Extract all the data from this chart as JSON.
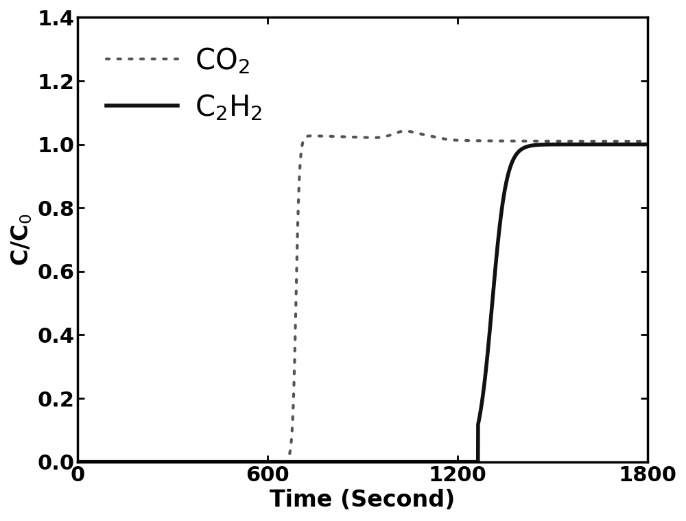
{
  "title": "",
  "xlabel": "Time (Second)",
  "ylabel": "C/C$_0$",
  "xlim": [
    0,
    1800
  ],
  "ylim": [
    0.0,
    1.4
  ],
  "xticks": [
    0,
    600,
    1200,
    1800
  ],
  "yticks": [
    0.0,
    0.2,
    0.4,
    0.6,
    0.8,
    1.0,
    1.2,
    1.4
  ],
  "co2_color": "#555555",
  "c2h2_color": "#111111",
  "background": "#ffffff",
  "legend_co2": "CO$_2$",
  "legend_c2h2": "C$_2$H$_2$",
  "axis_linewidth": 2.5,
  "co2_linewidth": 3.0,
  "c2h2_linewidth": 4.0,
  "tick_fontsize": 22,
  "label_fontsize": 24,
  "legend_fontsize": 30
}
